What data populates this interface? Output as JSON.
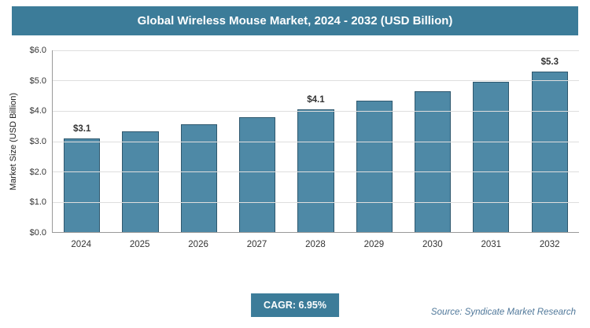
{
  "header": {
    "title": "Global Wireless Mouse Market, 2024 - 2032 (USD Billion)"
  },
  "chart_data": {
    "type": "bar",
    "title": "Global Wireless Mouse Market, 2024 - 2032 (USD Billion)",
    "categories": [
      "2024",
      "2025",
      "2026",
      "2027",
      "2028",
      "2029",
      "2030",
      "2031",
      "2032"
    ],
    "values": [
      3.1,
      3.32,
      3.55,
      3.79,
      4.06,
      4.34,
      4.64,
      4.96,
      5.31
    ],
    "data_labels": [
      "$3.1",
      "",
      "",
      "",
      "$4.1",
      "",
      "",
      "",
      "$5.3"
    ],
    "xlabel": "",
    "ylabel": "Market Size (USD Billion)",
    "ylim": [
      0,
      6
    ],
    "ytick_step": 1,
    "ytick_labels": [
      "$0.0",
      "$1.0",
      "$2.0",
      "$3.0",
      "$4.0",
      "$5.0",
      "$6.0"
    ],
    "grid": true,
    "legend": false
  },
  "footer": {
    "cagr_label": "CAGR: 6.95%",
    "source": "Source: Syndicate Market Research"
  },
  "colors": {
    "accent": "#3c7c99",
    "bar_fill": "#4e89a6",
    "bar_border": "#2f586e"
  }
}
